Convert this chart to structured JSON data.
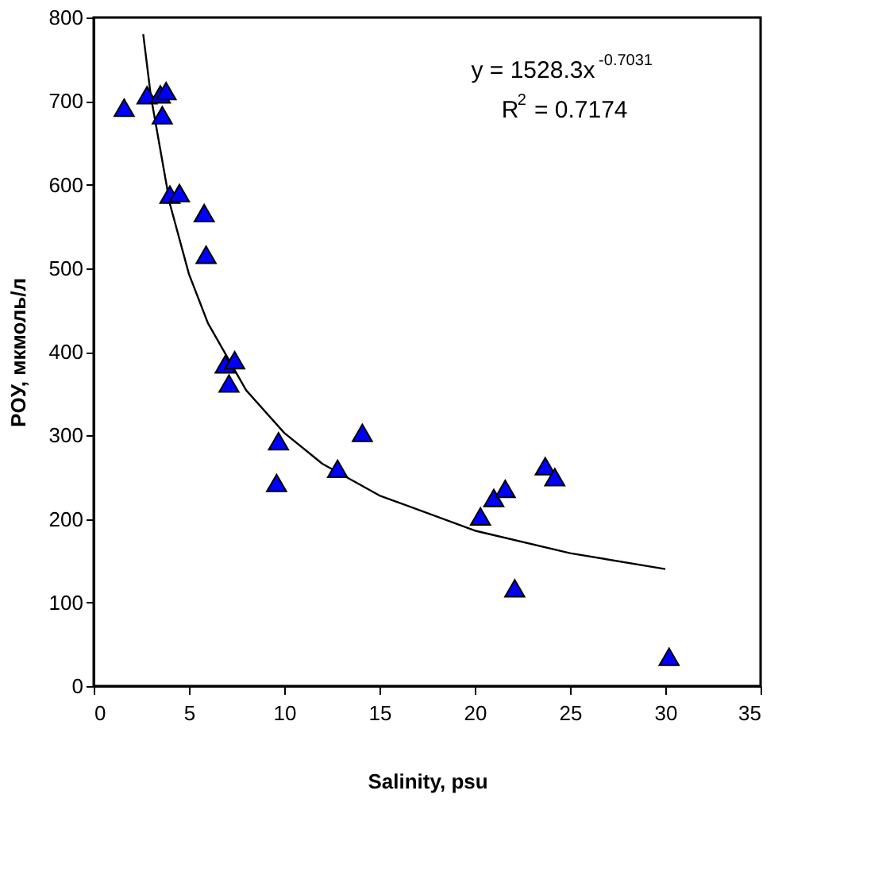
{
  "chart_data": {
    "type": "scatter",
    "xlabel": "Salinity, psu",
    "ylabel": "POУ, мкмоль/л",
    "xlim": [
      0,
      35
    ],
    "ylim": [
      0,
      800
    ],
    "xticks": [
      0,
      5,
      10,
      15,
      20,
      25,
      30,
      35
    ],
    "yticks": [
      0,
      100,
      200,
      300,
      400,
      500,
      600,
      700,
      800
    ],
    "grid": false,
    "marker": "triangle",
    "annotations": [
      "y = 1528.3x$^{-0.7031}$",
      "R$^{2}$ = 0.7174"
    ],
    "series": [
      {
        "color": "#0000ff",
        "x": [
          1.6,
          2.8,
          3.5,
          3.8,
          3.6,
          4.0,
          4.5,
          5.8,
          5.9,
          6.9,
          7.4,
          7.1,
          9.7,
          9.6,
          12.8,
          14.1,
          20.3,
          21.0,
          21.6,
          22.1,
          23.7,
          24.2,
          30.2
        ],
        "values": [
          692,
          707,
          708,
          712,
          683,
          588,
          590,
          566,
          516,
          385,
          390,
          362,
          293,
          243,
          260,
          303,
          203,
          225,
          236,
          117,
          263,
          250,
          35
        ]
      },
      {
        "type": "line",
        "marker": "none",
        "line_style": "solid",
        "color": "#000000",
        "x": [
          2.6,
          3,
          4,
          5,
          6,
          8,
          10,
          12,
          15,
          20,
          25,
          30
        ],
        "values": [
          780,
          706,
          577,
          493,
          434,
          354,
          303,
          266,
          228,
          186,
          159,
          140
        ]
      }
    ]
  }
}
